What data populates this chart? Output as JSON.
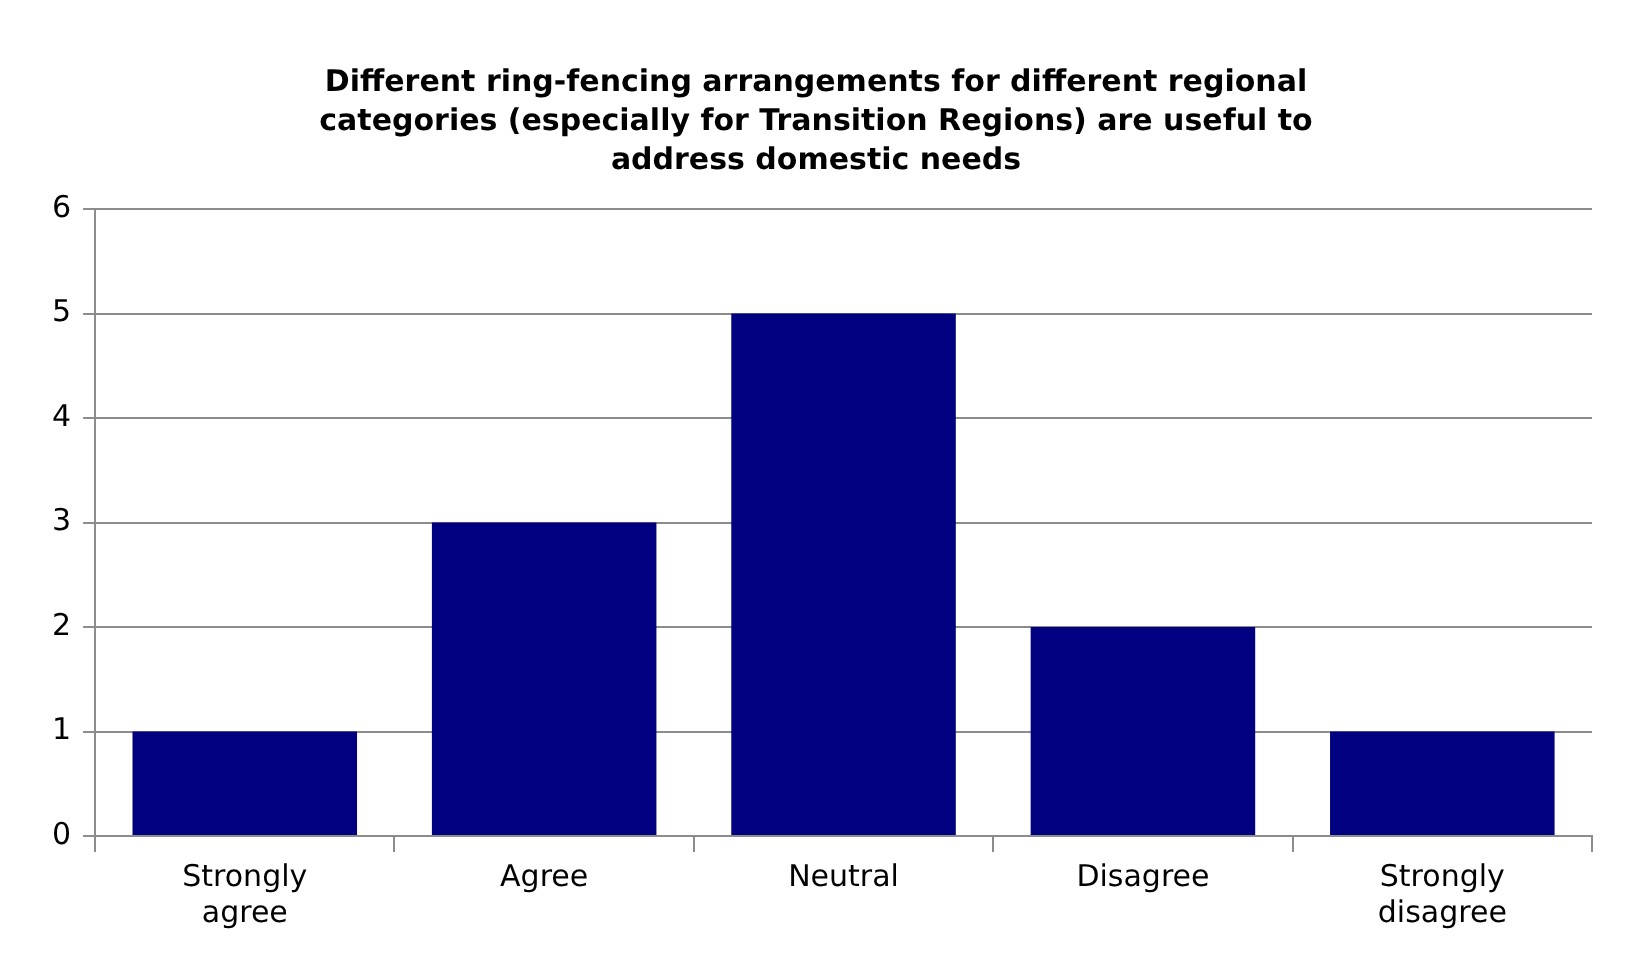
{
  "chart_data": {
    "type": "bar",
    "title": "Different ring-fencing arrangements for different regional categories (especially for Transition Regions) are useful to address domestic needs",
    "categories": [
      "Strongly agree",
      "Agree",
      "Neutral",
      "Disagree",
      "Strongly disagree"
    ],
    "values": [
      1,
      3,
      5,
      2,
      1
    ],
    "color": "#000080",
    "ylim": [
      0,
      6
    ],
    "yticks": [
      0,
      1,
      2,
      3,
      4,
      5,
      6
    ],
    "grid": "y",
    "legend": false
  }
}
